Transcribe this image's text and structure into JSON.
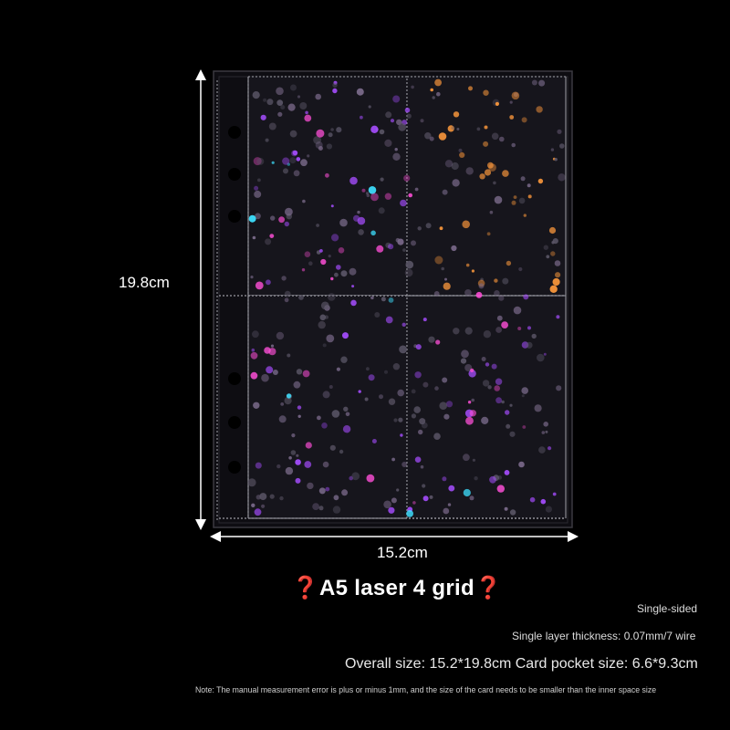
{
  "dimensions": {
    "height_label": "19.8cm",
    "width_label": "15.2cm"
  },
  "product": {
    "title": "❓A5 laser 4 grid❓",
    "pocket_grid": "2x2",
    "ring_holes": 6
  },
  "specs": {
    "sides": "Single-sided",
    "thickness": "Single layer thickness: 0.07mm/7 wire",
    "size": "Overall size: 15.2*19.8cm Card pocket size: 6.6*9.3cm",
    "note": "Note: The manual measurement error is plus or minus 1mm, and the size of the card needs to be smaller than the inner space size"
  },
  "colors": {
    "background": "#000000",
    "sheet": "#0e0d12",
    "sparkle_purple": "#a64dff",
    "sparkle_pink": "#ff4fd8",
    "sparkle_orange": "#ff9a3c",
    "sparkle_cyan": "#3ee0ff"
  }
}
